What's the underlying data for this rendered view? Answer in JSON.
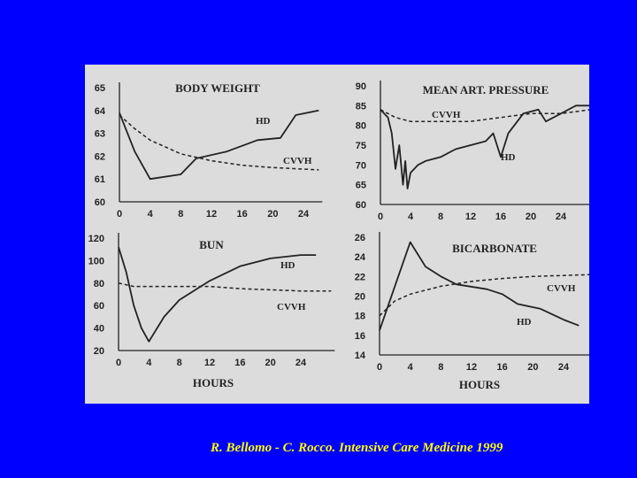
{
  "citation": "R. Bellomo - C. Rocco.  Intensive Care Medicine 1999",
  "colors": {
    "background": "#0000ff",
    "panel": "#dcdcdc",
    "ink": "#222222",
    "citation": "#ffff00"
  },
  "chart_data": [
    {
      "type": "line",
      "title": "BODY WEIGHT",
      "xlabel": "",
      "x_ticks": [
        0,
        4,
        8,
        12,
        16,
        20,
        24
      ],
      "y_ticks": [
        60,
        61,
        62,
        63,
        64,
        65
      ],
      "xlim": [
        0,
        24
      ],
      "ylim": [
        60,
        65
      ],
      "series": [
        {
          "name": "HD",
          "style": "solid",
          "points": [
            [
              0,
              63.9
            ],
            [
              2,
              62.2
            ],
            [
              4,
              61.0
            ],
            [
              8,
              61.2
            ],
            [
              10,
              61.9
            ],
            [
              14,
              62.2
            ],
            [
              18,
              62.7
            ],
            [
              21,
              62.8
            ],
            [
              23,
              63.8
            ],
            [
              26,
              64.0
            ]
          ]
        },
        {
          "name": "CVVH",
          "style": "dashed",
          "points": [
            [
              0,
              63.8
            ],
            [
              2,
              63.2
            ],
            [
              4,
              62.7
            ],
            [
              8,
              62.1
            ],
            [
              12,
              61.8
            ],
            [
              16,
              61.6
            ],
            [
              20,
              61.5
            ],
            [
              26,
              61.4
            ]
          ]
        }
      ]
    },
    {
      "type": "line",
      "title": "MEAN ART. PRESSURE",
      "xlabel": "",
      "x_ticks": [
        0,
        4,
        8,
        12,
        16,
        20,
        24
      ],
      "y_ticks": [
        60,
        65,
        70,
        75,
        80,
        85,
        90
      ],
      "xlim": [
        0,
        24
      ],
      "ylim": [
        60,
        90
      ],
      "series": [
        {
          "name": "HD",
          "style": "solid",
          "points": [
            [
              0,
              84
            ],
            [
              1,
              82
            ],
            [
              1.5,
              78
            ],
            [
              2,
              69
            ],
            [
              2.5,
              75
            ],
            [
              3,
              65
            ],
            [
              3.3,
              71
            ],
            [
              3.6,
              64
            ],
            [
              4,
              68
            ],
            [
              5,
              70
            ],
            [
              6,
              71
            ],
            [
              8,
              72
            ],
            [
              10,
              74
            ],
            [
              12,
              75
            ],
            [
              14,
              76
            ],
            [
              15,
              78
            ],
            [
              16,
              72
            ],
            [
              17,
              78
            ],
            [
              19,
              83
            ],
            [
              21,
              84
            ],
            [
              22,
              81
            ],
            [
              24,
              83
            ],
            [
              26,
              85
            ],
            [
              28,
              85
            ]
          ]
        },
        {
          "name": "CVVH",
          "style": "dashed",
          "points": [
            [
              0,
              84
            ],
            [
              2,
              82
            ],
            [
              4,
              81
            ],
            [
              8,
              81
            ],
            [
              12,
              81
            ],
            [
              16,
              82
            ],
            [
              20,
              83
            ],
            [
              24,
              83
            ],
            [
              28,
              84
            ]
          ]
        }
      ]
    },
    {
      "type": "line",
      "title": "BUN",
      "xlabel": "HOURS",
      "x_ticks": [
        0,
        4,
        8,
        12,
        16,
        20,
        24
      ],
      "y_ticks": [
        20,
        40,
        60,
        80,
        100,
        120
      ],
      "xlim": [
        0,
        24
      ],
      "ylim": [
        20,
        120
      ],
      "series": [
        {
          "name": "HD",
          "style": "solid",
          "points": [
            [
              0,
              112
            ],
            [
              1,
              90
            ],
            [
              2,
              60
            ],
            [
              3,
              40
            ],
            [
              4,
              28
            ],
            [
              6,
              50
            ],
            [
              8,
              65
            ],
            [
              12,
              82
            ],
            [
              16,
              95
            ],
            [
              20,
              102
            ],
            [
              24,
              105
            ],
            [
              26,
              105
            ]
          ]
        },
        {
          "name": "CVVH",
          "style": "dashed",
          "points": [
            [
              0,
              80
            ],
            [
              2,
              77
            ],
            [
              4,
              77
            ],
            [
              8,
              77
            ],
            [
              12,
              77
            ],
            [
              16,
              75
            ],
            [
              20,
              74
            ],
            [
              24,
              73
            ],
            [
              28,
              73
            ]
          ]
        }
      ]
    },
    {
      "type": "line",
      "title": "BICARBONATE",
      "xlabel": "HOURS",
      "x_ticks": [
        0,
        4,
        8,
        12,
        16,
        20,
        24
      ],
      "y_ticks": [
        14,
        16,
        18,
        20,
        22,
        24,
        26
      ],
      "xlim": [
        0,
        24
      ],
      "ylim": [
        14,
        26
      ],
      "series": [
        {
          "name": "HD",
          "style": "solid",
          "points": [
            [
              0,
              16.5
            ],
            [
              2,
              21
            ],
            [
              4,
              25.5
            ],
            [
              6,
              23
            ],
            [
              8,
              22
            ],
            [
              10,
              21.2
            ],
            [
              14,
              20.7
            ],
            [
              16,
              20.2
            ],
            [
              18,
              19.2
            ],
            [
              21,
              18.7
            ],
            [
              24,
              17.6
            ],
            [
              26,
              17
            ]
          ]
        },
        {
          "name": "CVVH",
          "style": "dashed",
          "points": [
            [
              0,
              18
            ],
            [
              2,
              19.5
            ],
            [
              4,
              20.2
            ],
            [
              8,
              21
            ],
            [
              12,
              21.5
            ],
            [
              16,
              21.8
            ],
            [
              20,
              22
            ],
            [
              24,
              22.1
            ],
            [
              28,
              22.2
            ]
          ]
        }
      ]
    }
  ]
}
